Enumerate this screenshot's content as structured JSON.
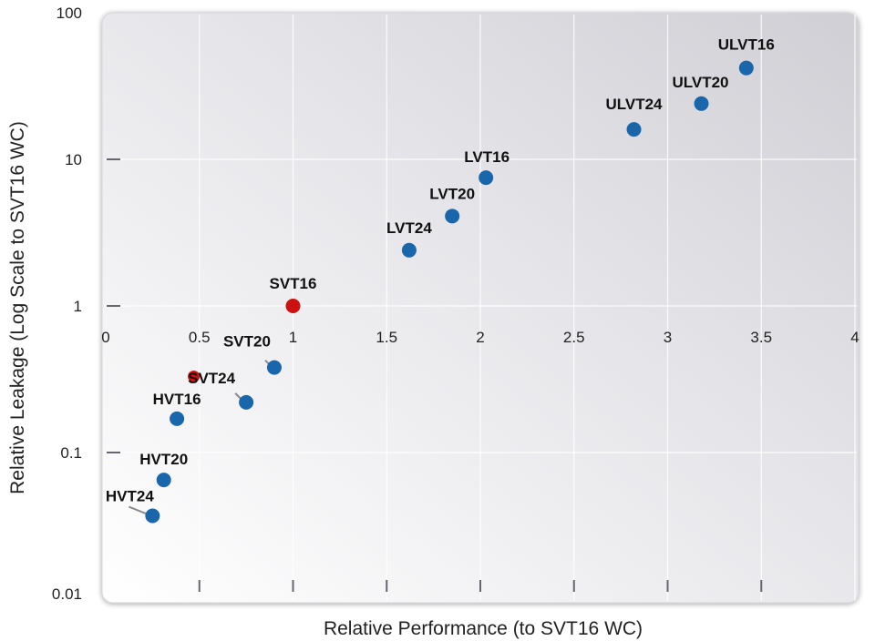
{
  "chart_data": {
    "type": "scatter",
    "xlabel": "Relative Performance (to SVT16 WC)",
    "ylabel": "Relative Leakage (Log Scale to SVT16 WC)",
    "xlim": [
      0,
      4
    ],
    "ylim": [
      0.01,
      100
    ],
    "yscale": "log",
    "grid": true,
    "x_ticks": [
      "0",
      "0.5",
      "1",
      "1.5",
      "2",
      "2.5",
      "3",
      "3.5",
      "4"
    ],
    "y_ticks": [
      "100",
      "10",
      "1",
      "0.1",
      "0.01"
    ],
    "colors": {
      "default": "#1a66aa",
      "highlight": "#cc1111"
    },
    "points": [
      {
        "label": "ULVT16",
        "x": 3.42,
        "y": 42,
        "color": "#1a66aa"
      },
      {
        "label": "ULVT20",
        "x": 3.18,
        "y": 24,
        "color": "#1a66aa"
      },
      {
        "label": "ULVT24",
        "x": 2.82,
        "y": 16,
        "color": "#1a66aa"
      },
      {
        "label": "LVT16",
        "x": 2.03,
        "y": 7.5,
        "color": "#1a66aa"
      },
      {
        "label": "LVT20",
        "x": 1.85,
        "y": 4.1,
        "color": "#1a66aa"
      },
      {
        "label": "LVT24",
        "x": 1.62,
        "y": 2.4,
        "color": "#1a66aa"
      },
      {
        "label": "SVT16",
        "x": 1.0,
        "y": 1.0,
        "color": "#cc1111"
      },
      {
        "label": "SVT20",
        "x": 0.9,
        "y": 0.38,
        "color": "#1a66aa"
      },
      {
        "label": "",
        "x": 0.47,
        "y": 0.33,
        "color": "#cc1111"
      },
      {
        "label": "SVT24",
        "x": 0.75,
        "y": 0.22,
        "color": "#1a66aa"
      },
      {
        "label": "HVT16",
        "x": 0.38,
        "y": 0.17,
        "color": "#1a66aa"
      },
      {
        "label": "HVT20",
        "x": 0.31,
        "y": 0.065,
        "color": "#1a66aa"
      },
      {
        "label": "HVT24",
        "x": 0.25,
        "y": 0.037,
        "color": "#1a66aa"
      }
    ]
  }
}
